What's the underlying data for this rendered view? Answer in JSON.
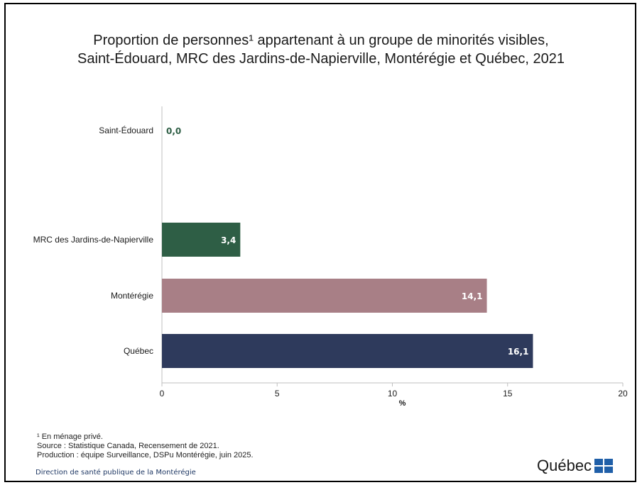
{
  "title_line1": "Proportion de personnes¹ appartenant à un groupe de minorités visibles,",
  "title_line2": "Saint-Édouard, MRC des Jardins-de-Napierville, Montérégie et Québec, 2021",
  "chart_data": {
    "type": "bar",
    "orientation": "horizontal",
    "categories": [
      "Saint-Édouard",
      "MRC des Jardins-de-Napierville",
      "Montérégie",
      "Québec"
    ],
    "values": [
      0.0,
      3.4,
      14.1,
      16.1
    ],
    "value_labels": [
      "0,0",
      "3,4",
      "14,1",
      "16,1"
    ],
    "colors": [
      "#2e5e45",
      "#2e5e45",
      "#a87f86",
      "#2e3a5c"
    ],
    "xlabel": "%",
    "xlim": [
      0,
      20
    ],
    "xticks": [
      0,
      5,
      10,
      15,
      20
    ],
    "xtick_labels": [
      "0",
      "5",
      "10",
      "15",
      "20"
    ],
    "grid": false
  },
  "footnotes": {
    "note": "¹ En ménage privé.",
    "source": "Source : Statistique Canada, Recensement de 2021.",
    "production": "Production : équipe Surveillance, DSPu Montérégie, juin 2025."
  },
  "organization": "Direction de santé publique de la Montérégie",
  "logo_text": "Québec"
}
